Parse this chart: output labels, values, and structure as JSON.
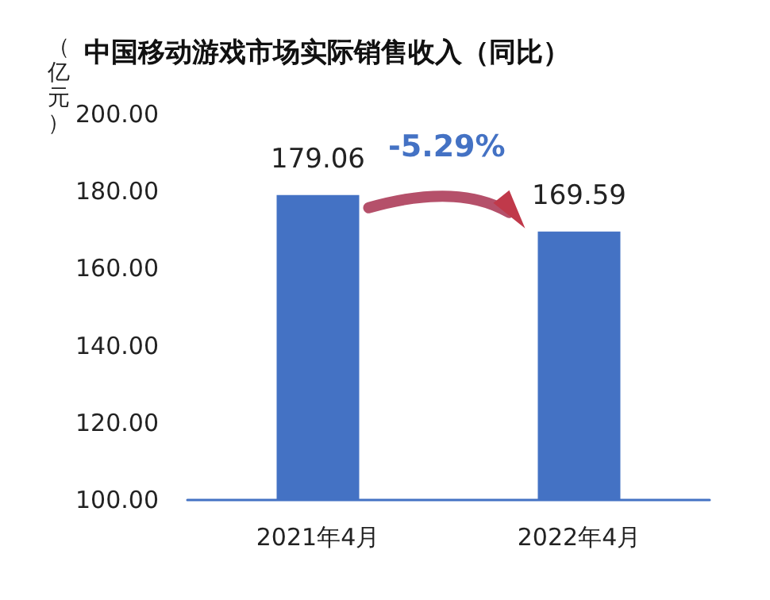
{
  "chart_data": {
    "type": "bar",
    "title": "中国移动游戏市场实际销售收入（同比）",
    "ylabel": "（亿元）",
    "categories": [
      "2021年4月",
      "2022年4月"
    ],
    "values": [
      179.06,
      169.59
    ],
    "color": "#4472c4",
    "ylim": [
      100,
      200
    ],
    "yticks": [
      {
        "value": 100,
        "label": "100.00"
      },
      {
        "value": 120,
        "label": "120.00"
      },
      {
        "value": 140,
        "label": "140.00"
      },
      {
        "value": 160,
        "label": "160.00"
      },
      {
        "value": 180,
        "label": "180.00"
      },
      {
        "value": 200,
        "label": "200.00"
      }
    ],
    "data_labels": true,
    "grid": false,
    "annotations": [
      "-5.29%"
    ]
  }
}
